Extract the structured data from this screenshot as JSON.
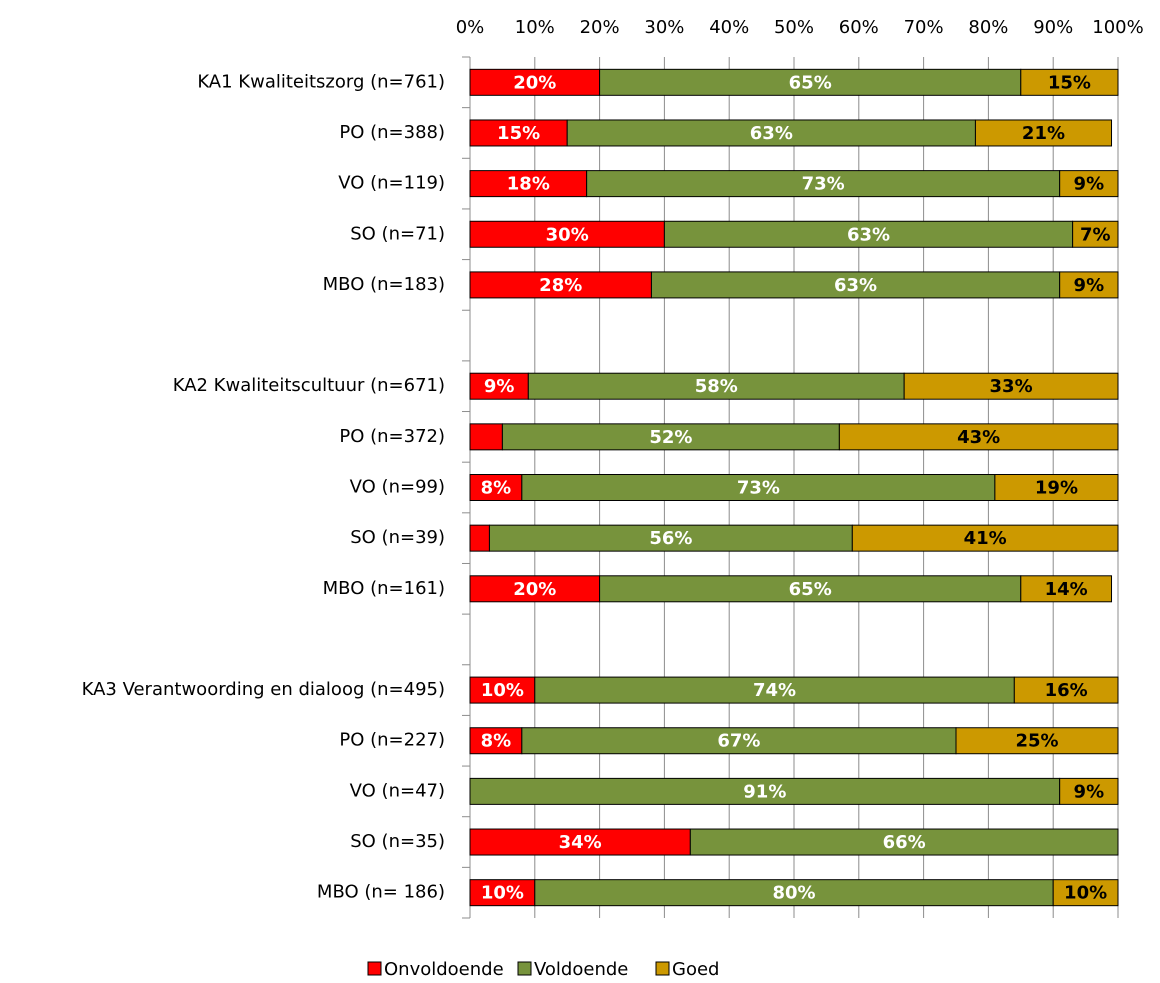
{
  "chart_data": {
    "type": "stacked-bar-horizontal",
    "categories": [
      "KA1 Kwaliteitszorg (n=761)",
      "PO (n=388)",
      "VO (n=119)",
      "SO (n=71)",
      "MBO (n=183)",
      null,
      "KA2 Kwaliteitscultuur (n=671)",
      "PO (n=372)",
      "VO (n=99)",
      "SO (n=39)",
      "MBO (n=161)",
      null,
      "KA3 Verantwoording en dialoog (n=495)",
      "PO (n=227)",
      "VO (n=47)",
      "SO (n=35)",
      "MBO (n= 186)"
    ],
    "series": [
      {
        "name": "Onvoldoende",
        "color": "#ff0000",
        "label_color": "#ffffff",
        "values": [
          20,
          15,
          18,
          30,
          28,
          null,
          9,
          5,
          8,
          3,
          20,
          null,
          10,
          8,
          0,
          34,
          10
        ],
        "value_labels": [
          "20%",
          "15%",
          "18%",
          "30%",
          "28%",
          null,
          "9%",
          null,
          "8%",
          null,
          "20%",
          null,
          "10%",
          "8%",
          null,
          "34%",
          "10%"
        ]
      },
      {
        "name": "Voldoende",
        "color": "#77933c",
        "label_color": "#ffffff",
        "values": [
          65,
          63,
          73,
          63,
          63,
          null,
          58,
          52,
          73,
          56,
          65,
          null,
          74,
          67,
          91,
          66,
          80
        ],
        "value_labels": [
          "65%",
          "63%",
          "73%",
          "63%",
          "63%",
          null,
          "58%",
          "52%",
          "73%",
          "56%",
          "65%",
          null,
          "74%",
          "67%",
          "91%",
          "66%",
          "80%"
        ]
      },
      {
        "name": "Goed",
        "color": "#cc9900",
        "label_color": "#000000",
        "values": [
          15,
          21,
          9,
          7,
          9,
          null,
          33,
          43,
          19,
          41,
          14,
          null,
          16,
          25,
          9,
          0,
          10
        ],
        "value_labels": [
          "15%",
          "21%",
          "9%",
          "7%",
          "9%",
          null,
          "33%",
          "43%",
          "19%",
          "41%",
          "14%",
          null,
          "16%",
          "25%",
          "9%",
          null,
          "10%"
        ]
      }
    ],
    "xlim": [
      0,
      100
    ],
    "xticks": [
      {
        "value": 0,
        "label": "0%"
      },
      {
        "value": 10,
        "label": "10%"
      },
      {
        "value": 20,
        "label": "20%"
      },
      {
        "value": 30,
        "label": "30%"
      },
      {
        "value": 40,
        "label": "40%"
      },
      {
        "value": 50,
        "label": "50%"
      },
      {
        "value": 60,
        "label": "60%"
      },
      {
        "value": 70,
        "label": "70%"
      },
      {
        "value": 80,
        "label": "80%"
      },
      {
        "value": 90,
        "label": "90%"
      },
      {
        "value": 100,
        "label": "100%"
      }
    ],
    "grid": true,
    "legend": "bottom"
  }
}
